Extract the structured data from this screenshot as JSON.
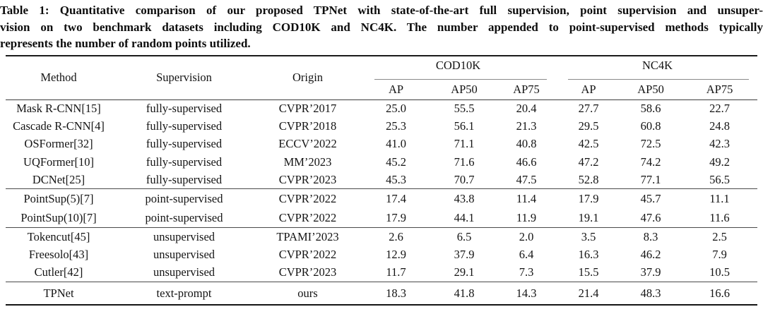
{
  "caption": {
    "lines": [
      "Table 1: Quantitative comparison of our proposed TPNet with state-of-the-art full supervision, point supervision and unsuper-",
      "vision on two benchmark datasets including COD10K and NC4K. The number appended to point-supervised methods typically",
      "represents the number of random points utilized."
    ]
  },
  "table": {
    "headers": {
      "method": "Method",
      "supervision": "Supervision",
      "origin": "Origin",
      "group1": "COD10K",
      "group2": "NC4K",
      "metrics": [
        "AP",
        "AP50",
        "AP75",
        "AP",
        "AP50",
        "AP75"
      ]
    },
    "groups": [
      {
        "name": "fully-supervised",
        "rows": [
          {
            "method": "Mask R-CNN[15]",
            "supervision": "fully-supervised",
            "origin": "CVPR’2017",
            "values": [
              "25.0",
              "55.5",
              "20.4",
              "27.7",
              "58.6",
              "22.7"
            ]
          },
          {
            "method": "Cascade R-CNN[4]",
            "supervision": "fully-supervised",
            "origin": "CVPR’2018",
            "values": [
              "25.3",
              "56.1",
              "21.3",
              "29.5",
              "60.8",
              "24.8"
            ]
          },
          {
            "method": "OSFormer[32]",
            "supervision": "fully-supervised",
            "origin": "ECCV’2022",
            "values": [
              "41.0",
              "71.1",
              "40.8",
              "42.5",
              "72.5",
              "42.3"
            ]
          },
          {
            "method": "UQFormer[10]",
            "supervision": "fully-supervised",
            "origin": "MM’2023",
            "values": [
              "45.2",
              "71.6",
              "46.6",
              "47.2",
              "74.2",
              "49.2"
            ]
          },
          {
            "method": "DCNet[25]",
            "supervision": "fully-supervised",
            "origin": "CVPR’2023",
            "values": [
              "45.3",
              "70.7",
              "47.5",
              "52.8",
              "77.1",
              "56.5"
            ]
          }
        ]
      },
      {
        "name": "point-supervised",
        "rows": [
          {
            "method": "PointSup(5)[7]",
            "supervision": "point-supervised",
            "origin": "CVPR’2022",
            "values": [
              "17.4",
              "43.8",
              "11.4",
              "17.9",
              "45.7",
              "11.1"
            ]
          },
          {
            "method": "PointSup(10)[7]",
            "supervision": "point-supervised",
            "origin": "CVPR’2022",
            "values": [
              "17.9",
              "44.1",
              "11.9",
              "19.1",
              "47.6",
              "11.6"
            ]
          }
        ]
      },
      {
        "name": "unsupervised",
        "rows": [
          {
            "method": "Tokencut[45]",
            "supervision": "unsupervised",
            "origin": "TPAMI’2023",
            "values": [
              "2.6",
              "6.5",
              "2.0",
              "3.5",
              "8.3",
              "2.5"
            ]
          },
          {
            "method": "Freesolo[43]",
            "supervision": "unsupervised",
            "origin": "CVPR’2022",
            "values": [
              "12.9",
              "37.9",
              "6.4",
              "16.3",
              "46.2",
              "7.9"
            ]
          },
          {
            "method": "Cutler[42]",
            "supervision": "unsupervised",
            "origin": "CVPR’2023",
            "values": [
              "11.7",
              "29.1",
              "7.3",
              "15.5",
              "37.9",
              "10.5"
            ]
          }
        ]
      },
      {
        "name": "ours",
        "rows": [
          {
            "method": "TPNet",
            "supervision": "text-prompt",
            "origin": "ours",
            "values": [
              "18.3",
              "41.8",
              "14.3",
              "21.4",
              "48.3",
              "16.6"
            ]
          }
        ]
      }
    ]
  },
  "colors": {
    "rule_heavy": "#1b1b1b",
    "rule_mid": "#3d3d3d",
    "rule_light": "#8a8a8a",
    "text": "#141414"
  }
}
